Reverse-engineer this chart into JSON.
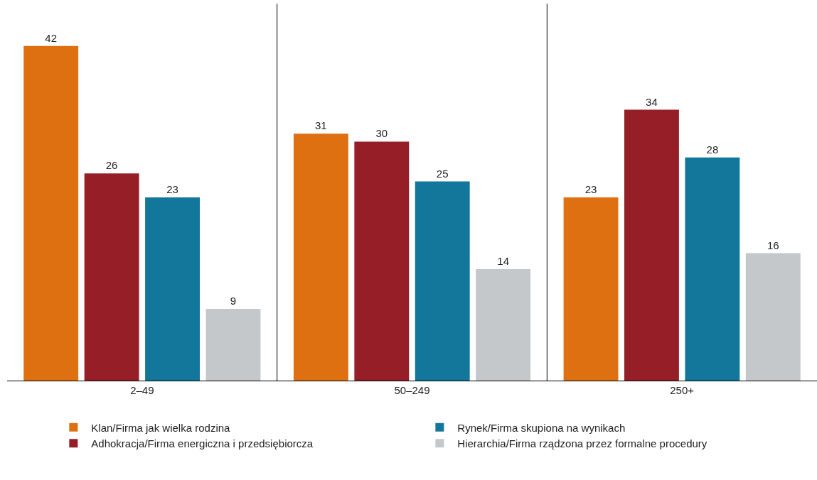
{
  "chart_data": {
    "type": "bar",
    "categories": [
      "2–49",
      "50–249",
      "250+"
    ],
    "series": [
      {
        "name": "Klan/Firma jak wielka rodzina",
        "color": "#de7012",
        "values": [
          42,
          31,
          23
        ]
      },
      {
        "name": "Adhokracja/Firma energiczna i przedsiębiorcza",
        "color": "#951e27",
        "values": [
          26,
          30,
          34
        ]
      },
      {
        "name": "Rynek/Firma skupiona na wynikach",
        "color": "#13769b",
        "values": [
          23,
          25,
          28
        ]
      },
      {
        "name": "Hierarchia/Firma rządzona przez formalne procedury",
        "color": "#c5c8cb",
        "values": [
          9,
          14,
          16
        ]
      }
    ],
    "data_labels": true,
    "grid": false,
    "legend": "bottom"
  }
}
